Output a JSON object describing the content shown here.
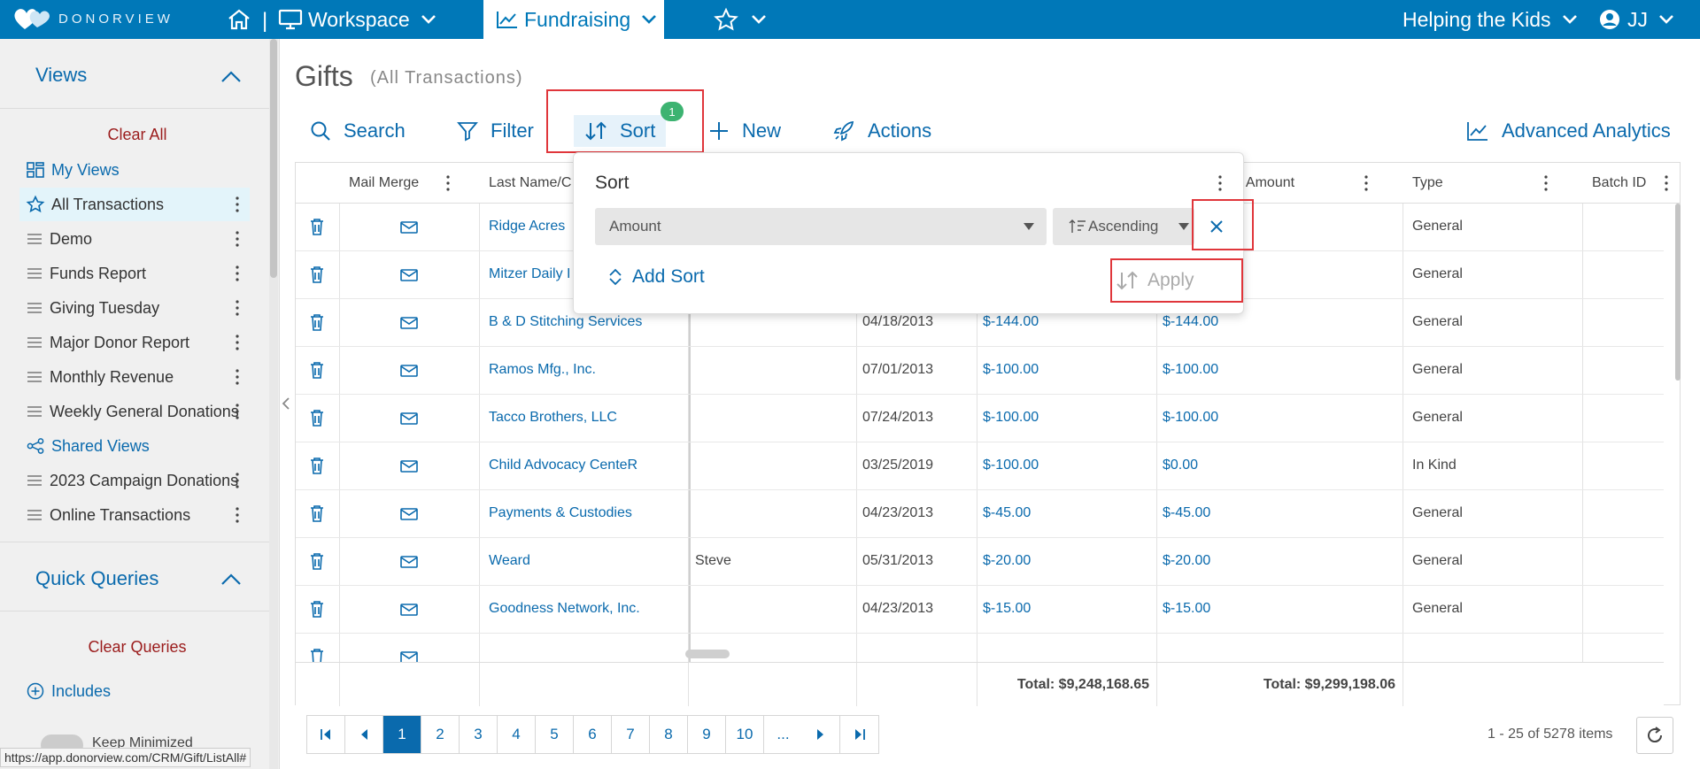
{
  "topbar": {
    "logo_text": "DONORVIEW",
    "workspace": "Workspace",
    "fundraising": "Fundraising",
    "divider": "|",
    "organization": "Helping the Kids",
    "user_initials": "JJ"
  },
  "sidebar": {
    "views_title": "Views",
    "clear_all": "Clear All",
    "items": [
      {
        "label": "My Views",
        "icon": "grid-icon"
      },
      {
        "label": "All Transactions",
        "icon": "star-icon"
      },
      {
        "label": "Demo",
        "icon": "list-icon"
      },
      {
        "label": "Funds Report",
        "icon": "list-icon"
      },
      {
        "label": "Giving Tuesday",
        "icon": "list-icon"
      },
      {
        "label": "Major Donor Report",
        "icon": "list-icon"
      },
      {
        "label": "Monthly Revenue",
        "icon": "list-icon"
      },
      {
        "label": "Weekly General Donations",
        "icon": "list-icon"
      },
      {
        "label": "Shared Views",
        "icon": "share-icon"
      },
      {
        "label": "2023 Campaign Donations",
        "icon": "list-icon"
      },
      {
        "label": "Online Transactions",
        "icon": "list-icon"
      }
    ],
    "quick_queries_title": "Quick Queries",
    "clear_queries": "Clear Queries",
    "includes": "Includes",
    "keep_minimized": "Keep Minimized",
    "status_url": "https://app.donorview.com/CRM/Gift/ListAll#"
  },
  "page": {
    "title": "Gifts",
    "subtitle": "(All Transactions)"
  },
  "toolbar": {
    "search": "Search",
    "filter": "Filter",
    "sort": "Sort",
    "sort_badge": "1",
    "new": "New",
    "actions": "Actions",
    "advanced_analytics": "Advanced Analytics"
  },
  "grid": {
    "headers": {
      "mail_merge": "Mail Merge",
      "last_name": "Last Name/C",
      "amount": "ble Amount",
      "type": "Type",
      "batch_id": "Batch ID"
    },
    "rows": [
      {
        "name": "Ridge Acres",
        "first": "",
        "date": "",
        "amount": "",
        "net": "",
        "type": "General"
      },
      {
        "name": "Mitzer Daily I",
        "first": "",
        "date": "",
        "amount": "",
        "net": "",
        "type": "General"
      },
      {
        "name": "B & D Stitching Services",
        "first": "",
        "date": "04/18/2013",
        "amount": "$-144.00",
        "net": "$-144.00",
        "type": "General"
      },
      {
        "name": "Ramos Mfg., Inc.",
        "first": "",
        "date": "07/01/2013",
        "amount": "$-100.00",
        "net": "$-100.00",
        "type": "General"
      },
      {
        "name": "Tacco Brothers, LLC",
        "first": "",
        "date": "07/24/2013",
        "amount": "$-100.00",
        "net": "$-100.00",
        "type": "General"
      },
      {
        "name": "Child Advocacy CenteR",
        "first": "",
        "date": "03/25/2019",
        "amount": "$-100.00",
        "net": "$0.00",
        "type": "In Kind"
      },
      {
        "name": "Payments & Custodies",
        "first": "",
        "date": "04/23/2013",
        "amount": "$-45.00",
        "net": "$-45.00",
        "type": "General"
      },
      {
        "name": "Weard",
        "first": "Steve",
        "date": "05/31/2013",
        "amount": "$-20.00",
        "net": "$-20.00",
        "type": "General"
      },
      {
        "name": "Goodness Network, Inc.",
        "first": "",
        "date": "04/23/2013",
        "amount": "$-15.00",
        "net": "$-15.00",
        "type": "General"
      }
    ],
    "total_amount": "Total: $9,248,168.65",
    "total_net": "Total: $9,299,198.06"
  },
  "pager": {
    "pages": [
      "1",
      "2",
      "3",
      "4",
      "5",
      "6",
      "7",
      "8",
      "9",
      "10",
      "..."
    ],
    "info": "1 - 25 of 5278 items"
  },
  "sort_popup": {
    "title": "Sort",
    "field_value": "Amount",
    "order_value": "Ascending",
    "add_sort": "Add Sort",
    "apply": "Apply"
  },
  "colors": {
    "brand": "#0078b8",
    "link": "#0a6aad",
    "highlight": "#e0363b",
    "badge": "#3cb371"
  }
}
